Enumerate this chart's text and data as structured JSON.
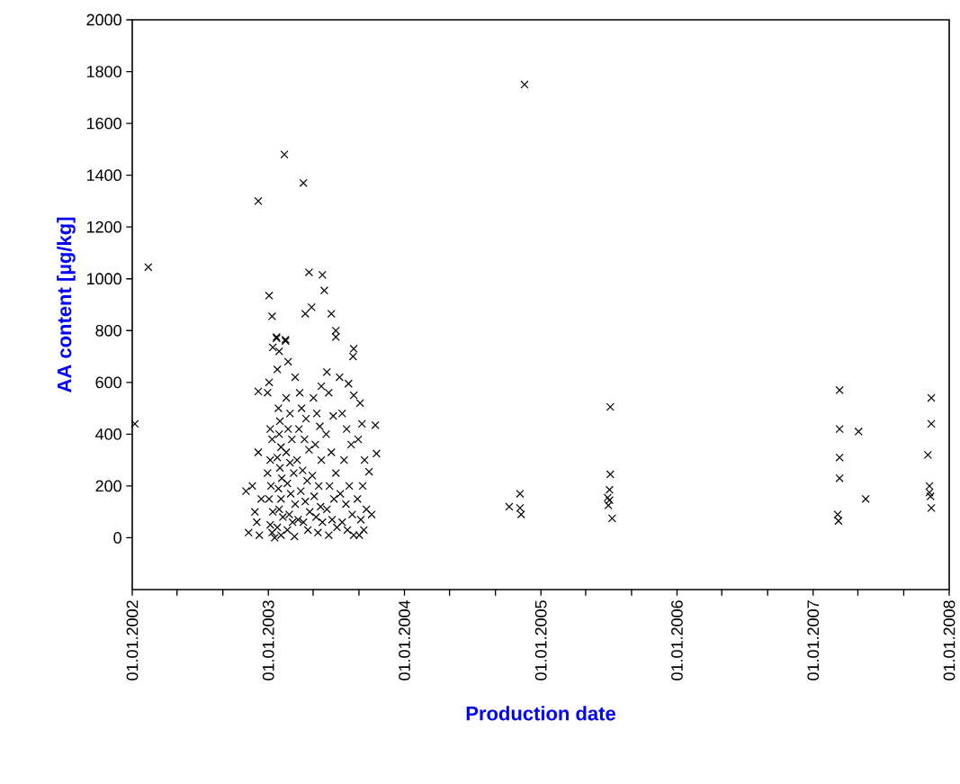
{
  "chart_data": {
    "type": "scatter",
    "xlabel": "Production date",
    "ylabel": "AA content [µg/kg]",
    "marker": "cross",
    "xlim": [
      "2002-01-01",
      "2008-01-01"
    ],
    "xticks": [
      {
        "value": "2002-01-01",
        "label": "01.01.2002"
      },
      {
        "value": "2002-05-01",
        "label": null
      },
      {
        "value": "2002-09-01",
        "label": null
      },
      {
        "value": "2003-01-01",
        "label": "01.01.2003"
      },
      {
        "value": "2003-05-01",
        "label": null
      },
      {
        "value": "2003-09-01",
        "label": null
      },
      {
        "value": "2004-01-01",
        "label": "01.01.2004"
      },
      {
        "value": "2004-05-01",
        "label": null
      },
      {
        "value": "2004-09-01",
        "label": null
      },
      {
        "value": "2005-01-01",
        "label": "01.01.2005"
      },
      {
        "value": "2005-05-01",
        "label": null
      },
      {
        "value": "2005-09-01",
        "label": null
      },
      {
        "value": "2006-01-01",
        "label": "01.01.2006"
      },
      {
        "value": "2006-05-01",
        "label": null
      },
      {
        "value": "2006-09-01",
        "label": null
      },
      {
        "value": "2007-01-01",
        "label": "01.01.2007"
      },
      {
        "value": "2007-05-01",
        "label": null
      },
      {
        "value": "2007-09-01",
        "label": null
      },
      {
        "value": "2008-01-01",
        "label": "01.01.2008"
      }
    ],
    "ylim": [
      -200,
      2000
    ],
    "yticks": [
      0,
      200,
      400,
      600,
      800,
      1000,
      1200,
      1400,
      1600,
      1800,
      2000
    ],
    "series": [
      {
        "color": "#000000",
        "x": [
          "2002-01-08",
          "2002-02-13",
          "2002-12-05",
          "2003-02-13",
          "2003-04-05",
          "2003-04-20",
          "2003-05-26",
          "2003-05-31",
          "2003-01-03",
          "2003-01-11",
          "2003-04-10",
          "2003-01-23",
          "2003-02-16",
          "2003-01-13",
          "2003-04-27",
          "2003-06-19",
          "2003-07-01",
          "2003-07-01",
          "2003-08-18",
          "2003-08-16",
          "2003-06-07",
          "2003-07-11",
          "2003-08-04",
          "2003-03-14",
          "2002-12-05",
          "2003-08-18",
          "2003-10-15",
          "2003-10-18",
          "2003-05-23",
          "2002-11-02",
          "2002-11-09",
          "2002-11-19",
          "2002-11-26",
          "2002-12-05",
          "2002-12-01",
          "2002-12-13",
          "2002-12-08",
          "2002-12-30",
          "2003-01-03",
          "2003-01-06",
          "2003-01-11",
          "2003-01-06",
          "2002-12-30",
          "2003-01-08",
          "2003-01-03",
          "2003-01-13",
          "2003-01-06",
          "2003-01-11",
          "2003-01-18",
          "2003-01-23",
          "2003-01-30",
          "2003-01-25",
          "2003-01-28",
          "2003-02-01",
          "2003-01-30",
          "2003-02-04",
          "2003-01-25",
          "2003-02-01",
          "2003-02-06",
          "2003-01-28",
          "2003-02-04",
          "2003-01-30",
          "2003-02-09",
          "2003-01-25",
          "2003-02-04",
          "2003-02-16",
          "2003-02-23",
          "2003-02-18",
          "2003-02-28",
          "2003-02-23",
          "2003-03-05",
          "2003-02-18",
          "2003-02-28",
          "2003-03-10",
          "2003-02-21",
          "2003-03-02",
          "2003-03-14",
          "2003-02-26",
          "2003-03-07",
          "2003-02-21",
          "2003-03-12",
          "2003-03-26",
          "2003-03-31",
          "2003-04-12",
          "2003-03-24",
          "2003-04-08",
          "2003-04-20",
          "2003-03-19",
          "2003-04-03",
          "2003-04-15",
          "2003-03-29",
          "2003-04-10",
          "2003-04-22",
          "2003-03-22",
          "2003-04-05",
          "2003-04-17",
          "2003-05-02",
          "2003-05-11",
          "2003-05-19",
          "2003-05-07",
          "2003-05-23",
          "2003-04-29",
          "2003-05-16",
          "2003-05-04",
          "2003-05-21",
          "2003-05-09",
          "2003-05-26",
          "2003-05-14",
          "2003-06-12",
          "2003-06-24",
          "2003-06-05",
          "2003-06-19",
          "2003-07-01",
          "2003-06-14",
          "2003-06-26",
          "2003-06-07",
          "2003-06-21",
          "2003-07-04",
          "2003-06-12",
          "2003-07-18",
          "2003-07-30",
          "2003-08-11",
          "2003-07-23",
          "2003-08-06",
          "2003-07-13",
          "2003-07-28",
          "2003-08-14",
          "2003-07-18",
          "2003-08-01",
          "2003-08-18",
          "2003-09-04",
          "2003-09-09",
          "2003-08-30",
          "2003-09-16",
          "2003-09-28",
          "2003-09-11",
          "2003-08-28",
          "2003-09-21",
          "2003-09-06",
          "2003-09-14",
          "2003-10-05",
          "2003-09-02",
          "2004-11-18",
          "2004-10-08",
          "2004-11-06",
          "2004-11-06",
          "2004-11-09",
          "2005-07-06",
          "2005-07-06",
          "2005-07-04",
          "2005-06-29",
          "2005-07-01",
          "2005-07-11",
          "2005-07-04",
          "2007-03-13",
          "2007-03-13",
          "2007-03-13",
          "2007-03-13",
          "2007-03-08",
          "2007-03-10",
          "2007-05-03",
          "2007-05-22",
          "2007-11-14",
          "2007-11-14",
          "2007-11-05",
          "2007-11-09",
          "2007-11-09",
          "2007-11-12",
          "2007-11-14"
        ],
        "values": [
          440,
          1045,
          1300,
          1480,
          1370,
          1025,
          1015,
          955,
          935,
          855,
          865,
          775,
          765,
          735,
          890,
          865,
          800,
          775,
          730,
          700,
          640,
          620,
          595,
          620,
          565,
          550,
          435,
          325,
          585,
          180,
          20,
          200,
          100,
          330,
          60,
          150,
          10,
          560,
          600,
          420,
          380,
          300,
          250,
          200,
          150,
          100,
          50,
          20,
          0,
          770,
          720,
          650,
          500,
          450,
          400,
          350,
          310,
          270,
          230,
          190,
          150,
          110,
          80,
          40,
          10,
          760,
          680,
          540,
          480,
          420,
          380,
          330,
          290,
          250,
          210,
          170,
          130,
          90,
          60,
          30,
          5,
          560,
          500,
          460,
          420,
          380,
          340,
          300,
          260,
          220,
          180,
          140,
          100,
          70,
          60,
          30,
          540,
          480,
          430,
          360,
          300,
          240,
          200,
          160,
          120,
          80,
          60,
          20,
          560,
          470,
          400,
          330,
          250,
          200,
          150,
          110,
          70,
          40,
          10,
          480,
          420,
          360,
          300,
          200,
          170,
          130,
          90,
          60,
          30,
          10,
          520,
          440,
          380,
          300,
          255,
          200,
          150,
          110,
          70,
          30,
          90,
          10,
          1750,
          120,
          170,
          115,
          90,
          505,
          245,
          185,
          155,
          125,
          75,
          145,
          570,
          420,
          310,
          230,
          90,
          65,
          410,
          150,
          540,
          440,
          320,
          200,
          175,
          160,
          115
        ]
      }
    ]
  }
}
